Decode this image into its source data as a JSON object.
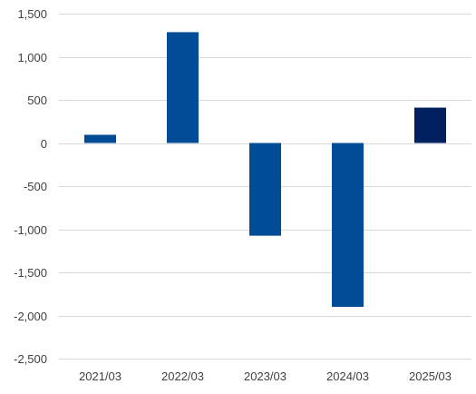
{
  "chart_data": {
    "type": "bar",
    "title": "",
    "xlabel": "",
    "ylabel": "",
    "categories": [
      "2021/03",
      "2022/03",
      "2023/03",
      "2024/03",
      "2025/03"
    ],
    "values": [
      95,
      1285,
      -1075,
      -1900,
      410
    ],
    "ylim": [
      -2500,
      1500
    ],
    "y_ticks": [
      1500,
      1000,
      500,
      0,
      -500,
      -1000,
      -1500,
      -2000,
      -2500
    ],
    "y_tick_labels": [
      "1,500",
      "1,000",
      "500",
      "0",
      "-500",
      "-1,000",
      "-1,500",
      "-2,000",
      "-2,500"
    ],
    "grid": true,
    "legend": "none",
    "colors": {
      "bar": "#004c97",
      "bar_highlight": "#002060",
      "grid": "#d9d9d9",
      "text": "#404040"
    },
    "highlight_index": 4
  }
}
